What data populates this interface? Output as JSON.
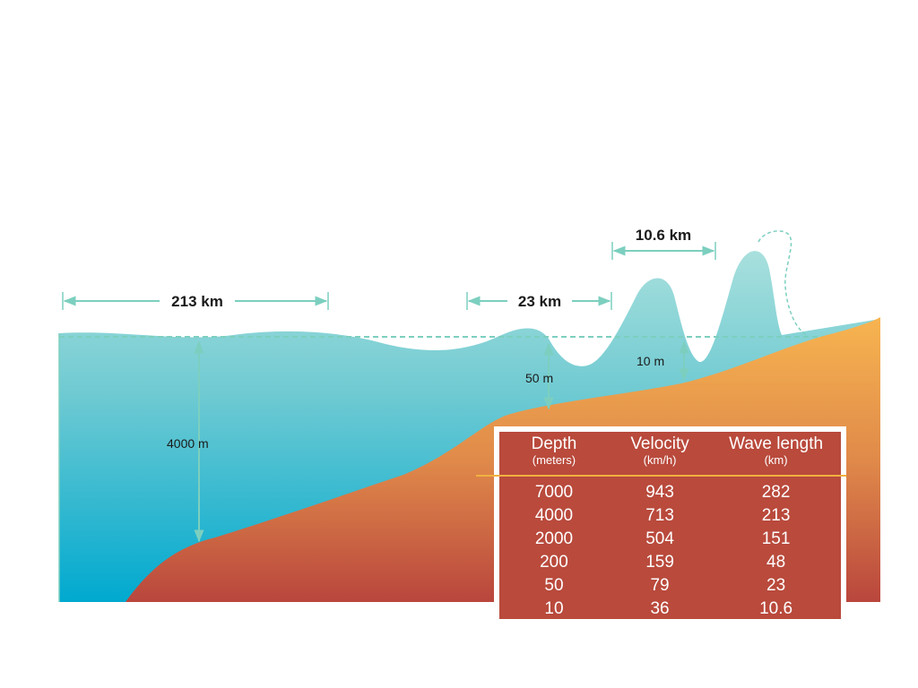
{
  "labels": {
    "span_213": "213 km",
    "span_23": "23 km",
    "span_10_6": "10.6 km",
    "depth_4000": "4000 m",
    "depth_50": "50 m",
    "depth_10": "10 m"
  },
  "table": {
    "headers": [
      {
        "name": "Depth",
        "unit": "(meters)"
      },
      {
        "name": "Velocity",
        "unit": "(km/h)"
      },
      {
        "name": "Wave length",
        "unit": "(km)"
      }
    ],
    "rows": [
      [
        "7000",
        "943",
        "282"
      ],
      [
        "4000",
        "713",
        "213"
      ],
      [
        "2000",
        "504",
        "151"
      ],
      [
        "200",
        "159",
        "48"
      ],
      [
        "50",
        "79",
        "23"
      ],
      [
        "10",
        "36",
        "10.6"
      ]
    ]
  },
  "colors": {
    "water_top": "#9fdcd8",
    "water_bottom": "#00a9cf",
    "seabed_top": "#f7b450",
    "seabed_bottom": "#b9463d",
    "annotation": "#7ccfbf",
    "table_bg": "#b94a3c",
    "table_rule": "#f2b040"
  }
}
